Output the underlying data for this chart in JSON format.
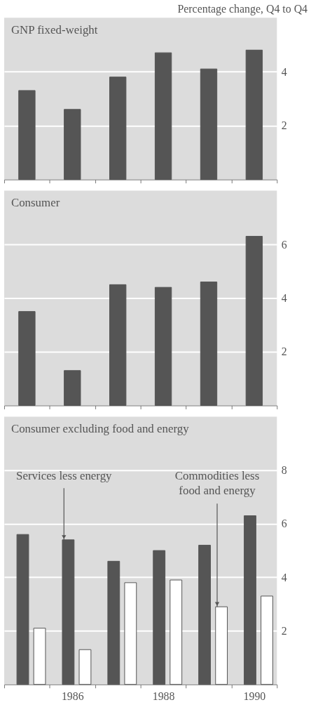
{
  "chart_data": [
    {
      "type": "bar",
      "title": "GNP fixed-weight",
      "ylabel": "Percentage change, Q4 to Q4",
      "categories": [
        null,
        "1986",
        null,
        "1988",
        null,
        "1990"
      ],
      "values": [
        3.3,
        2.6,
        3.8,
        4.7,
        4.1,
        4.8
      ],
      "color": "#555555",
      "ylim": [
        0,
        6
      ],
      "yticks": [
        2,
        4
      ],
      "grid": "y",
      "tick_labels": "y"
    },
    {
      "type": "bar",
      "title": "Consumer",
      "categories": [
        null,
        "1986",
        null,
        "1988",
        null,
        "1990"
      ],
      "values": [
        3.5,
        1.3,
        4.5,
        4.4,
        4.6,
        6.3
      ],
      "color": "#555555",
      "ylim": [
        0,
        8
      ],
      "yticks": [
        2,
        4,
        6
      ],
      "grid": "y",
      "tick_labels": "y"
    },
    {
      "type": "bar",
      "title": "Consumer excluding food and energy",
      "categories": [
        null,
        "1986",
        null,
        "1988",
        null,
        "1990"
      ],
      "series": [
        {
          "name": "Services less energy",
          "color": "#555555",
          "values": [
            5.6,
            5.4,
            4.6,
            5.0,
            5.2,
            6.3
          ]
        },
        {
          "name": "Commodities less food and energy",
          "color": "#ffffff",
          "values": [
            2.1,
            1.3,
            3.8,
            3.9,
            2.9,
            3.3
          ]
        }
      ],
      "ylim": [
        0,
        10
      ],
      "yticks": [
        2,
        4,
        6,
        8
      ],
      "grid": "y"
    }
  ]
}
